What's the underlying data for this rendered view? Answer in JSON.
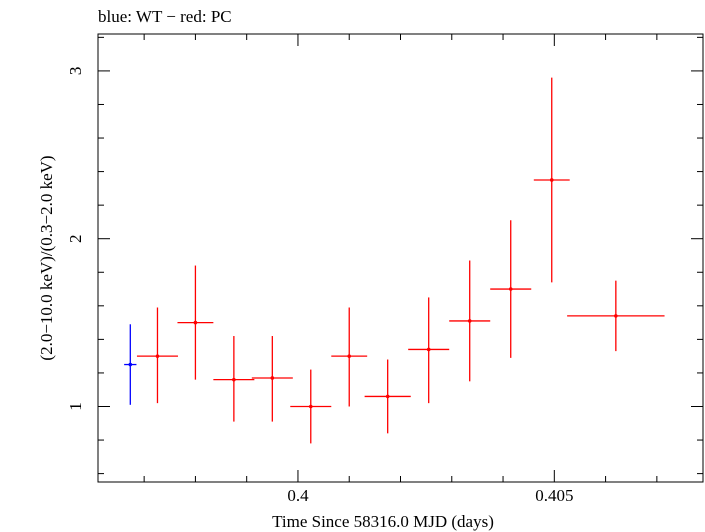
{
  "chart_data": {
    "type": "scatter",
    "title": "blue: WT − red: PC",
    "xlabel": "Time Since 58316.0 MJD (days)",
    "ylabel": "(2.0−10.0 keV)/(0.3−2.0 keV)",
    "xlim": [
      0.3961,
      0.4079
    ],
    "ylim": [
      0.55,
      3.22
    ],
    "x_ticks": [
      {
        "value": 0.4,
        "label": "0.4"
      },
      {
        "value": 0.405,
        "label": "0.405"
      }
    ],
    "y_ticks": [
      {
        "value": 1,
        "label": "1"
      },
      {
        "value": 2,
        "label": "2"
      },
      {
        "value": 3,
        "label": "3"
      }
    ],
    "series": [
      {
        "name": "WT",
        "color": "#0000ff",
        "points": [
          {
            "x": 0.39673,
            "y": 1.25,
            "xerr": 0.00012,
            "ylo": 1.01,
            "yhi": 1.49
          }
        ]
      },
      {
        "name": "PC",
        "color": "#ff0000",
        "points": [
          {
            "x": 0.39726,
            "y": 1.3,
            "xerr": 0.0004,
            "ylo": 1.02,
            "yhi": 1.59
          },
          {
            "x": 0.398,
            "y": 1.5,
            "xerr": 0.00035,
            "ylo": 1.16,
            "yhi": 1.84
          },
          {
            "x": 0.39875,
            "y": 1.16,
            "xerr": 0.0004,
            "ylo": 0.91,
            "yhi": 1.42
          },
          {
            "x": 0.3995,
            "y": 1.17,
            "xerr": 0.0004,
            "ylo": 0.91,
            "yhi": 1.42
          },
          {
            "x": 0.40025,
            "y": 1.0,
            "xerr": 0.0004,
            "ylo": 0.78,
            "yhi": 1.22
          },
          {
            "x": 0.401,
            "y": 1.3,
            "xerr": 0.00035,
            "ylo": 1.0,
            "yhi": 1.59
          },
          {
            "x": 0.40175,
            "y": 1.06,
            "xerr": 0.00045,
            "ylo": 0.84,
            "yhi": 1.28
          },
          {
            "x": 0.40255,
            "y": 1.34,
            "xerr": 0.0004,
            "ylo": 1.02,
            "yhi": 1.65
          },
          {
            "x": 0.40335,
            "y": 1.51,
            "xerr": 0.0004,
            "ylo": 1.15,
            "yhi": 1.87
          },
          {
            "x": 0.40415,
            "y": 1.7,
            "xerr": 0.0004,
            "ylo": 1.29,
            "yhi": 2.11
          },
          {
            "x": 0.40495,
            "y": 2.35,
            "xerr": 0.00035,
            "ylo": 1.74,
            "yhi": 2.96
          },
          {
            "x": 0.4062,
            "y": 1.54,
            "xerr": 0.00095,
            "ylo": 1.33,
            "yhi": 1.75
          }
        ]
      }
    ]
  }
}
